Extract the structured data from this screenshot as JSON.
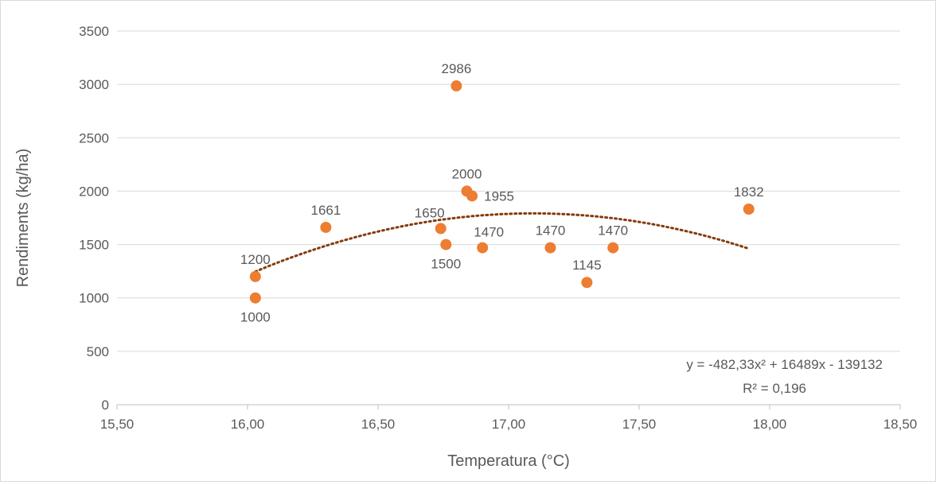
{
  "chart_data": {
    "type": "scatter",
    "title": "",
    "xlabel": "Temperatura (°C)",
    "ylabel": "Rendiments (kg/ha)",
    "xlim": [
      15.5,
      18.5
    ],
    "ylim": [
      0,
      3500
    ],
    "x_ticks": [
      15.5,
      16.0,
      16.5,
      17.0,
      17.5,
      18.0,
      18.5
    ],
    "x_tick_labels": [
      "15,50",
      "16,00",
      "16,50",
      "17,00",
      "17,50",
      "18,00",
      "18,50"
    ],
    "y_ticks": [
      0,
      500,
      1000,
      1500,
      2000,
      2500,
      3000,
      3500
    ],
    "y_tick_labels": [
      "0",
      "500",
      "1000",
      "1500",
      "2000",
      "2500",
      "3000",
      "3500"
    ],
    "grid": "horizontal",
    "legend": "none",
    "marker_color": "#ED7D31",
    "trend_color": "#843C0C",
    "points": [
      {
        "x": 16.03,
        "y": 1200,
        "label": "1200",
        "label_pos": "above"
      },
      {
        "x": 16.03,
        "y": 1000,
        "label": "1000",
        "label_pos": "below"
      },
      {
        "x": 16.3,
        "y": 1661,
        "label": "1661",
        "label_pos": "above"
      },
      {
        "x": 16.74,
        "y": 1650,
        "label": "1650",
        "label_pos": "above-left"
      },
      {
        "x": 16.76,
        "y": 1500,
        "label": "1500",
        "label_pos": "below"
      },
      {
        "x": 16.8,
        "y": 2986,
        "label": "2986",
        "label_pos": "above"
      },
      {
        "x": 16.84,
        "y": 2000,
        "label": "2000",
        "label_pos": "above"
      },
      {
        "x": 16.86,
        "y": 1955,
        "label": "1955",
        "label_pos": "right"
      },
      {
        "x": 16.9,
        "y": 1470,
        "label": "1470",
        "label_pos": "above-right"
      },
      {
        "x": 17.16,
        "y": 1470,
        "label": "1470",
        "label_pos": "above"
      },
      {
        "x": 17.3,
        "y": 1145,
        "label": "1145",
        "label_pos": "above"
      },
      {
        "x": 17.4,
        "y": 1470,
        "label": "1470",
        "label_pos": "above"
      },
      {
        "x": 17.92,
        "y": 1832,
        "label": "1832",
        "label_pos": "above"
      }
    ],
    "trendline": {
      "type": "polynomial",
      "coefficients": [
        -482.33,
        16489,
        -139132
      ],
      "x_range": [
        16.03,
        17.92
      ],
      "equation": "y = -482,33x² + 16489x - 139132",
      "r_squared": "R² = 0,196"
    }
  }
}
